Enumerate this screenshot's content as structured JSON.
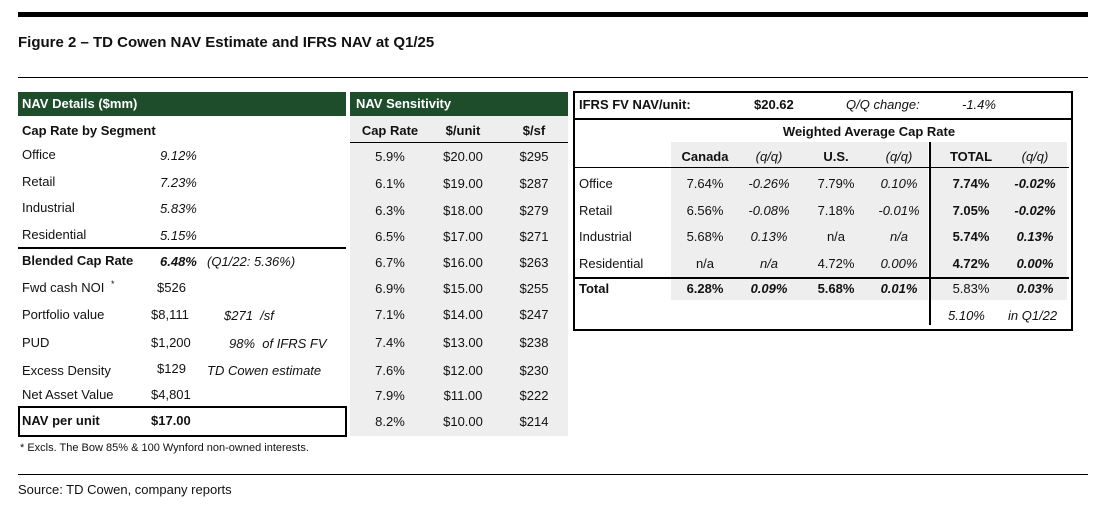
{
  "title": "Figure 2 – TD Cowen NAV Estimate and IFRS NAV at Q1/25",
  "nav_details": {
    "header": "NAV Details ($mm)",
    "subheader": "Cap Rate by Segment",
    "segments": [
      {
        "label": "Office",
        "value": "9.12%"
      },
      {
        "label": "Retail",
        "value": "7.23%"
      },
      {
        "label": "Industrial",
        "value": "5.83%"
      },
      {
        "label": "Residential",
        "value": "5.15%"
      }
    ],
    "blended": {
      "label": "Blended Cap Rate",
      "value": "6.48%",
      "note": "(Q1/22: 5.36%)"
    },
    "fwd_noi": {
      "label": "Fwd cash NOI",
      "marker": "*",
      "value": "$526"
    },
    "portfolio": {
      "label": "Portfolio value",
      "value": "$8,111",
      "note": "$271  /sf"
    },
    "pud": {
      "label": "PUD",
      "value": "$1,200",
      "note": "98%  of IFRS FV"
    },
    "excess": {
      "label": "Excess Density",
      "value": "$129",
      "note": "TD Cowen estimate"
    },
    "nav": {
      "label": "Net Asset Value",
      "value": "$4,801"
    },
    "nav_unit": {
      "label": "NAV per unit",
      "value": "$17.00"
    },
    "footnote": "* Excls. The Bow 85% & 100 Wynford non-owned interests."
  },
  "sensitivity": {
    "header": "NAV Sensitivity",
    "columns": [
      "Cap Rate",
      "$/unit",
      "$/sf"
    ],
    "rows": [
      [
        "5.9%",
        "$20.00",
        "$295"
      ],
      [
        "6.1%",
        "$19.00",
        "$287"
      ],
      [
        "6.3%",
        "$18.00",
        "$279"
      ],
      [
        "6.5%",
        "$17.00",
        "$271"
      ],
      [
        "6.7%",
        "$16.00",
        "$263"
      ],
      [
        "6.9%",
        "$15.00",
        "$255"
      ],
      [
        "7.1%",
        "$14.00",
        "$247"
      ],
      [
        "7.4%",
        "$13.00",
        "$238"
      ],
      [
        "7.6%",
        "$12.00",
        "$230"
      ],
      [
        "7.9%",
        "$11.00",
        "$222"
      ],
      [
        "8.2%",
        "$10.00",
        "$214"
      ]
    ]
  },
  "ifrs": {
    "label": "IFRS FV NAV/unit:",
    "value": "$20.62",
    "qq_label": "Q/Q change:",
    "qq_value": "-1.4%",
    "wacr_header": "Weighted Average Cap Rate",
    "columns": [
      "Canada",
      "(q/q)",
      "U.S.",
      "(q/q)",
      "TOTAL",
      "(q/q)"
    ],
    "rows": [
      {
        "label": "Office",
        "vals": [
          "7.64%",
          "-0.26%",
          "7.79%",
          "0.10%",
          "7.74%",
          "-0.02%"
        ]
      },
      {
        "label": "Retail",
        "vals": [
          "6.56%",
          "-0.08%",
          "7.18%",
          "-0.01%",
          "7.05%",
          "-0.02%"
        ]
      },
      {
        "label": "Industrial",
        "vals": [
          "5.68%",
          "0.13%",
          "n/a",
          "n/a",
          "5.74%",
          "0.13%"
        ]
      },
      {
        "label": "Residential",
        "vals": [
          "n/a",
          "n/a",
          "4.72%",
          "0.00%",
          "4.72%",
          "0.00%"
        ]
      },
      {
        "label": "Total",
        "vals": [
          "6.28%",
          "0.09%",
          "5.68%",
          "0.01%",
          "5.83%",
          "0.03%"
        ]
      }
    ],
    "prior": {
      "value": "5.10%",
      "label": "in Q1/22"
    }
  },
  "source": "Source: TD Cowen, company reports"
}
